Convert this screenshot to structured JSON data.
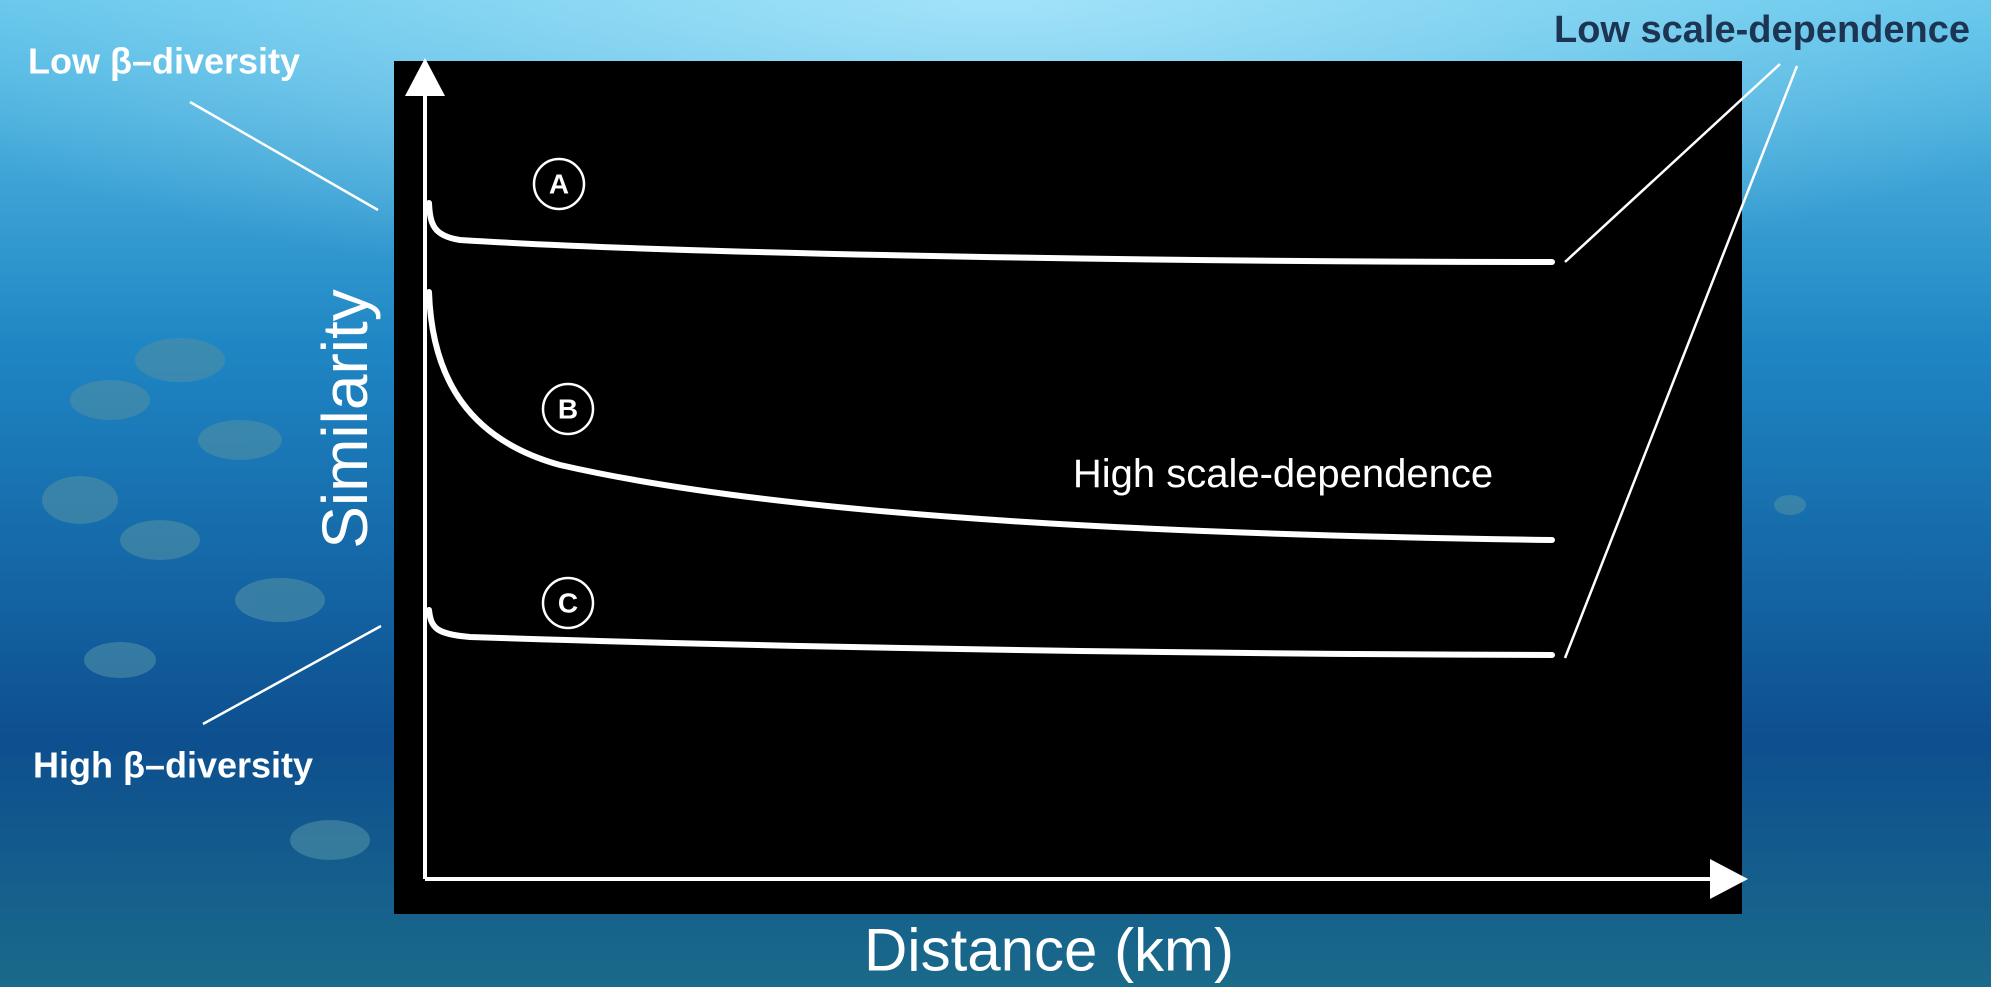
{
  "title_left_top": "Low β–diversity",
  "title_left_bottom": "High β–diversity",
  "title_right_top": "Low scale-dependence",
  "curve_note": "High scale-dependence",
  "y_axis_label": "Similarity",
  "x_axis_label": "Distance (km)",
  "curves": [
    {
      "label": "A"
    },
    {
      "label": "B"
    },
    {
      "label": "C"
    }
  ]
}
